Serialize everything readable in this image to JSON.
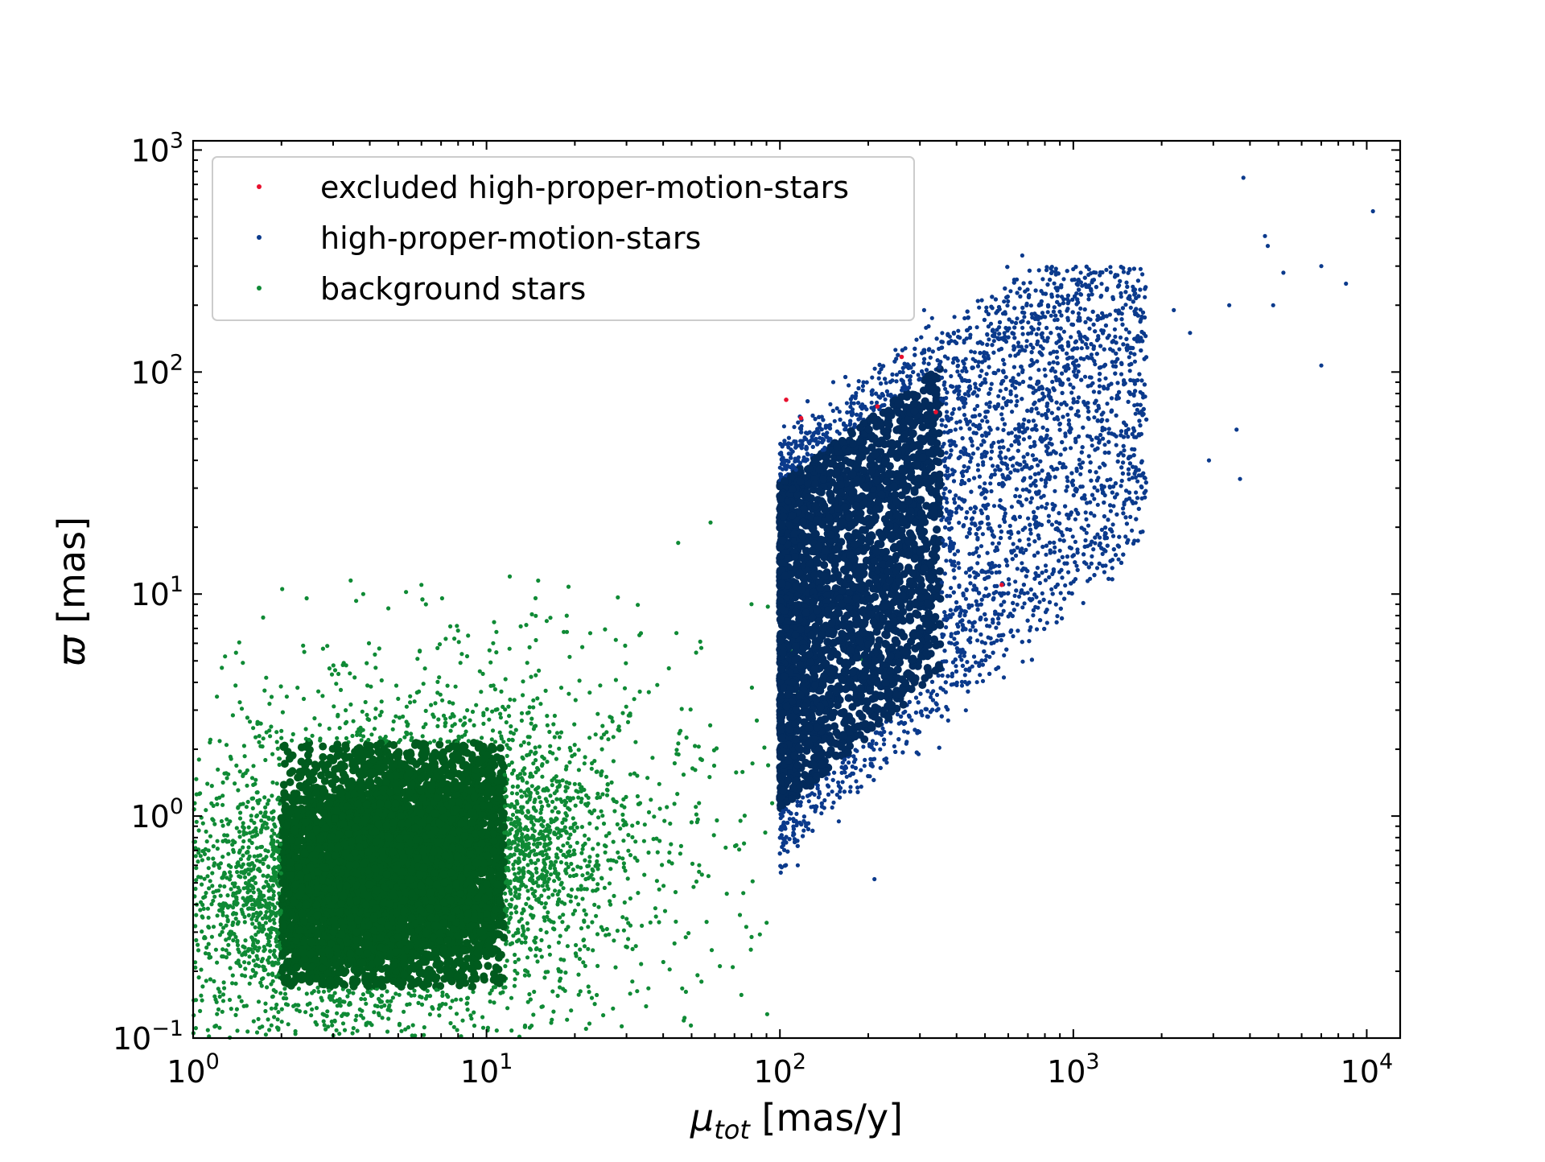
{
  "chart_data": {
    "type": "scatter",
    "title": "",
    "xlabel": {
      "symbol": "μ",
      "subscript": "tot",
      "unit": "[mas/y]"
    },
    "ylabel": {
      "symbol": "ϖ",
      "unit": "[mas]"
    },
    "xscale": "log",
    "yscale": "log",
    "xlim": [
      1,
      13000
    ],
    "ylim": [
      0.1,
      1100
    ],
    "x_ticks": [
      {
        "value": 1,
        "base": "10",
        "exp": "0"
      },
      {
        "value": 10,
        "base": "10",
        "exp": "1"
      },
      {
        "value": 100,
        "base": "10",
        "exp": "2"
      },
      {
        "value": 1000,
        "base": "10",
        "exp": "3"
      },
      {
        "value": 10000,
        "base": "10",
        "exp": "4"
      }
    ],
    "y_ticks": [
      {
        "value": 0.1,
        "base": "10",
        "exp": "−1"
      },
      {
        "value": 1,
        "base": "10",
        "exp": "0"
      },
      {
        "value": 10,
        "base": "10",
        "exp": "1"
      },
      {
        "value": 100,
        "base": "10",
        "exp": "2"
      },
      {
        "value": 1000,
        "base": "10",
        "exp": "3"
      }
    ],
    "grid": false,
    "legend_position": "upper-left",
    "series": [
      {
        "name": "excluded high-proper-motion-stars",
        "color": "#e8102e",
        "points": [
          [
            105,
            75
          ],
          [
            215,
            70
          ],
          [
            340,
            66
          ],
          [
            570,
            11
          ],
          [
            260,
            117
          ],
          [
            118,
            62
          ]
        ]
      },
      {
        "name": "high-proper-motion-stars",
        "color": "#0b3a8c",
        "dense_color": "#032b5c",
        "cluster": {
          "x_min": 100,
          "x_max": 1800,
          "y_min": 0.55,
          "y_max": 300
        },
        "outliers": [
          [
            3800,
            750
          ],
          [
            10500,
            530
          ],
          [
            4500,
            410
          ],
          [
            4600,
            370
          ],
          [
            670,
            335
          ],
          [
            7000,
            300
          ],
          [
            8500,
            250
          ],
          [
            5200,
            280
          ],
          [
            3400,
            200
          ],
          [
            4800,
            200
          ],
          [
            7000,
            107
          ],
          [
            3700,
            33
          ],
          [
            3600,
            55
          ],
          [
            2900,
            40
          ],
          [
            210,
            0.52
          ],
          [
            115,
            0.6
          ],
          [
            310,
            190
          ],
          [
            330,
            175
          ],
          [
            2200,
            190
          ],
          [
            2500,
            150
          ]
        ]
      },
      {
        "name": "background stars",
        "color": "#0f8a35",
        "dense_color": "#005b1e",
        "cluster": {
          "x_min": 1,
          "x_max": 95,
          "y_min": 0.1,
          "y_max": 12
        },
        "outliers": [
          [
            58,
            21
          ],
          [
            45,
            17
          ],
          [
            12,
            12
          ],
          [
            15,
            11.5
          ],
          [
            6,
            11
          ],
          [
            3.8,
            10
          ],
          [
            107,
            7
          ],
          [
            130,
            5.8
          ],
          [
            190,
            5.1
          ],
          [
            110,
            5.5
          ],
          [
            115,
            3.6
          ],
          [
            47,
            0.12
          ],
          [
            75,
            0.45
          ],
          [
            80,
            9
          ]
        ]
      }
    ]
  }
}
